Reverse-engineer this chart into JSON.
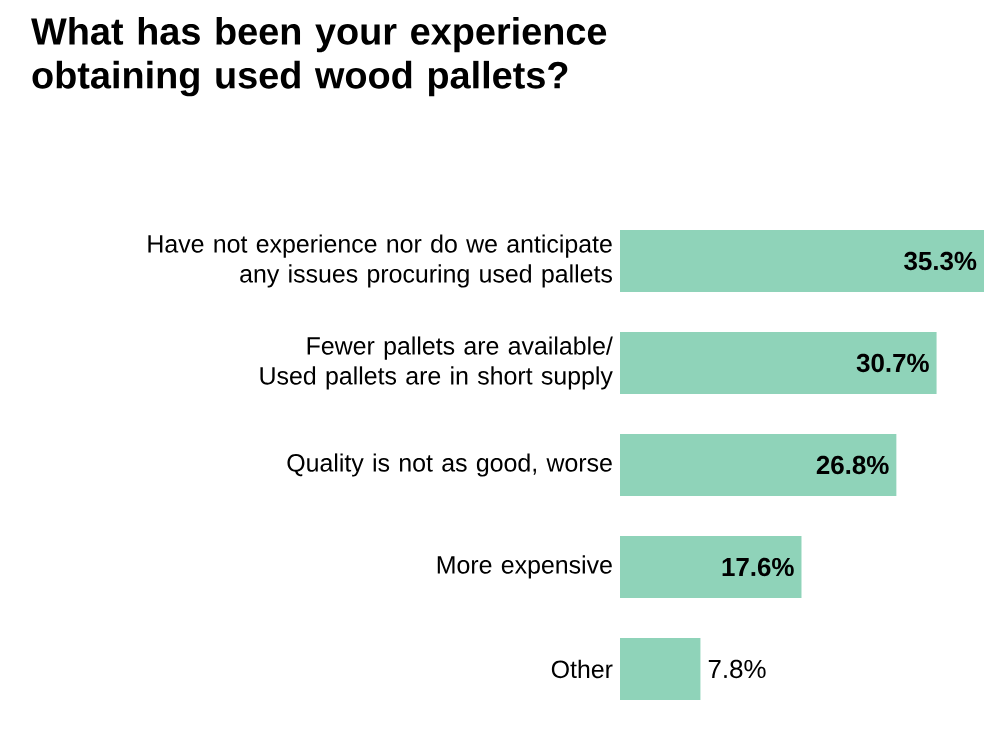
{
  "chart_data": {
    "type": "bar",
    "orientation": "horizontal",
    "title": "What has been your experience obtaining used wood pallets?",
    "categories": [
      "Have not experience nor do we anticipate any issues procuring used pallets",
      "Fewer pallets are available/ Used pallets are in short supply",
      "Quality is not as good, worse",
      "More expensive",
      "Other"
    ],
    "values": [
      35.3,
      30.7,
      26.8,
      17.6,
      7.8
    ],
    "value_labels": [
      "35.3%",
      "30.7%",
      "26.8%",
      "17.6%",
      "7.8%"
    ],
    "color": "#8fd3b9"
  }
}
